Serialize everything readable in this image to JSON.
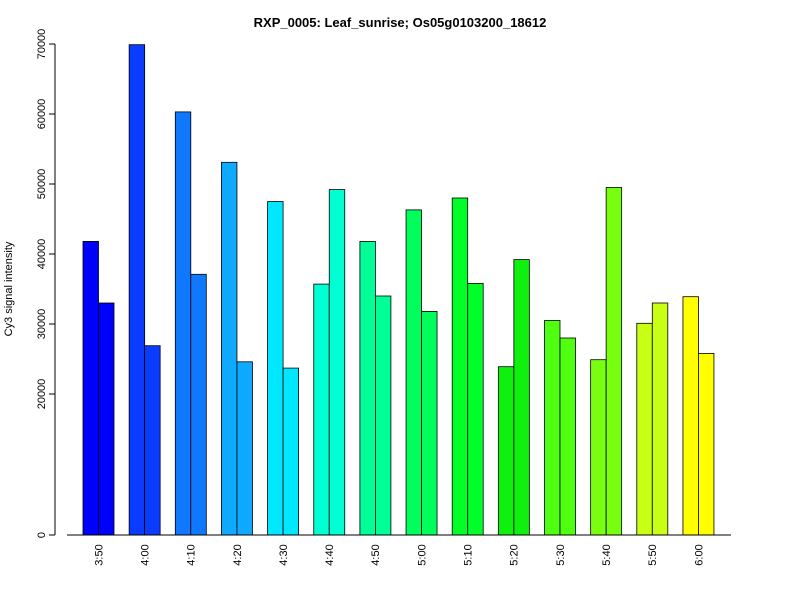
{
  "chart_data": {
    "type": "bar",
    "title": "RXP_0005: Leaf_sunrise; Os05g0103200_18612",
    "xlabel": "",
    "ylabel": "Cy3 signal intensity",
    "categories": [
      "3:50",
      "4:00",
      "4:10",
      "4:20",
      "4:30",
      "4:40",
      "4:50",
      "5:00",
      "5:10",
      "5:20",
      "5:30",
      "5:40",
      "5:50",
      "6:00"
    ],
    "series": [
      {
        "values": [
          41800,
          69900,
          60300,
          53100,
          47500,
          35700,
          41800,
          46300,
          48000,
          23900,
          30500,
          24900,
          30100,
          33900
        ]
      },
      {
        "values": [
          33000,
          26900,
          37100,
          24600,
          23700,
          49200,
          34000,
          31800,
          35800,
          39200,
          28000,
          49500,
          33000,
          25800
        ]
      }
    ],
    "bar_colors": [
      "#0000ff",
      "#0a3cff",
      "#0f78ff",
      "#0faaff",
      "#00e8ff",
      "#00ffd2",
      "#00ff96",
      "#00ff5a",
      "#00ff28",
      "#0ff00f",
      "#50ff0f",
      "#78ff0f",
      "#c8ff14",
      "#ffff00"
    ],
    "ytick_labels": [
      "0",
      "20000",
      "30000",
      "40000",
      "50000",
      "60000",
      "70000"
    ],
    "yticks": [
      0,
      20000,
      30000,
      40000,
      50000,
      60000,
      70000
    ],
    "ylim": [
      0,
      70000
    ],
    "grid": false,
    "legend": "none"
  }
}
